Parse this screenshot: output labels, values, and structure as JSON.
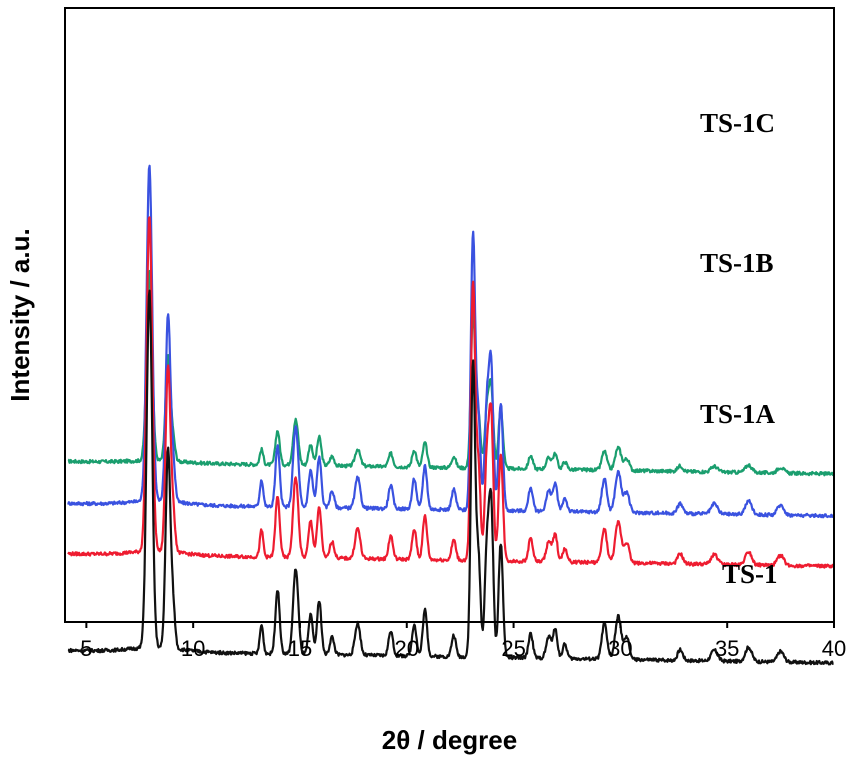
{
  "chart_data": {
    "type": "line",
    "xlabel": "2θ / degree",
    "ylabel": "Intensity / a.u.",
    "xlim": [
      4,
      40
    ],
    "xticks": [
      5,
      10,
      15,
      20,
      25,
      30,
      35,
      40
    ],
    "y_ticks_shown": false,
    "grid": false,
    "legend": "labels placed beside each trace",
    "peaks": [
      {
        "x": 7.95,
        "w": 0.13,
        "h": 1.0
      },
      {
        "x": 8.82,
        "w": 0.11,
        "h": 0.55
      },
      {
        "x": 9.05,
        "w": 0.1,
        "h": 0.12
      },
      {
        "x": 13.2,
        "w": 0.08,
        "h": 0.08
      },
      {
        "x": 13.95,
        "w": 0.1,
        "h": 0.18
      },
      {
        "x": 14.8,
        "w": 0.12,
        "h": 0.24
      },
      {
        "x": 15.5,
        "w": 0.1,
        "h": 0.11
      },
      {
        "x": 15.9,
        "w": 0.1,
        "h": 0.15
      },
      {
        "x": 16.5,
        "w": 0.1,
        "h": 0.05
      },
      {
        "x": 17.7,
        "w": 0.12,
        "h": 0.09
      },
      {
        "x": 19.25,
        "w": 0.1,
        "h": 0.07
      },
      {
        "x": 20.35,
        "w": 0.1,
        "h": 0.09
      },
      {
        "x": 20.85,
        "w": 0.1,
        "h": 0.13
      },
      {
        "x": 22.2,
        "w": 0.1,
        "h": 0.06
      },
      {
        "x": 23.1,
        "w": 0.1,
        "h": 0.82
      },
      {
        "x": 23.35,
        "w": 0.1,
        "h": 0.28
      },
      {
        "x": 23.75,
        "w": 0.1,
        "h": 0.3
      },
      {
        "x": 23.95,
        "w": 0.1,
        "h": 0.42
      },
      {
        "x": 24.4,
        "w": 0.1,
        "h": 0.32
      },
      {
        "x": 25.8,
        "w": 0.1,
        "h": 0.07
      },
      {
        "x": 26.65,
        "w": 0.12,
        "h": 0.06
      },
      {
        "x": 26.95,
        "w": 0.1,
        "h": 0.08
      },
      {
        "x": 27.4,
        "w": 0.1,
        "h": 0.04
      },
      {
        "x": 29.25,
        "w": 0.12,
        "h": 0.1
      },
      {
        "x": 29.9,
        "w": 0.14,
        "h": 0.12
      },
      {
        "x": 30.3,
        "w": 0.12,
        "h": 0.06
      },
      {
        "x": 32.8,
        "w": 0.12,
        "h": 0.03
      },
      {
        "x": 34.4,
        "w": 0.15,
        "h": 0.03
      },
      {
        "x": 36.0,
        "w": 0.15,
        "h": 0.04
      },
      {
        "x": 37.5,
        "w": 0.15,
        "h": 0.03
      }
    ],
    "series": [
      {
        "name": "TS-1C",
        "color": "#1a9e6e",
        "baseline": 0.3,
        "scale": 0.45
      },
      {
        "name": "TS-1B",
        "color": "#3a52e0",
        "baseline": 0.2,
        "scale": 0.8
      },
      {
        "name": "TS-1A",
        "color": "#ee1c30",
        "baseline": 0.08,
        "scale": 0.8
      },
      {
        "name": "TS-1",
        "color": "#111111",
        "baseline": -0.15,
        "scale": 0.85
      }
    ]
  }
}
